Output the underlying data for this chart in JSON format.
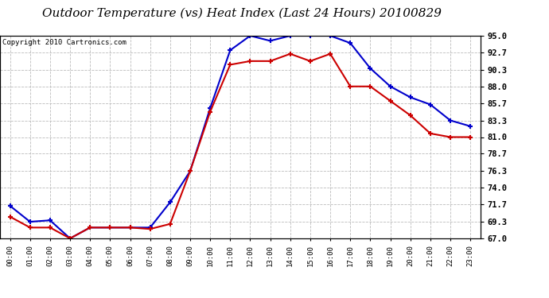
{
  "title": "Outdoor Temperature (vs) Heat Index (Last 24 Hours) 20100829",
  "copyright": "Copyright 2010 Cartronics.com",
  "x_labels": [
    "00:00",
    "01:00",
    "02:00",
    "03:00",
    "04:00",
    "05:00",
    "06:00",
    "07:00",
    "08:00",
    "09:00",
    "10:00",
    "11:00",
    "12:00",
    "13:00",
    "14:00",
    "15:00",
    "16:00",
    "17:00",
    "18:00",
    "19:00",
    "20:00",
    "21:00",
    "22:00",
    "23:00"
  ],
  "blue_data": [
    71.5,
    69.3,
    69.5,
    67.0,
    68.5,
    68.5,
    68.5,
    68.5,
    72.0,
    76.3,
    85.0,
    93.0,
    95.0,
    94.3,
    95.0,
    95.0,
    95.0,
    94.0,
    90.5,
    88.0,
    86.5,
    85.5,
    83.3,
    82.5
  ],
  "red_data": [
    70.0,
    68.5,
    68.5,
    67.0,
    68.5,
    68.5,
    68.5,
    68.3,
    69.0,
    76.3,
    84.5,
    91.0,
    91.5,
    91.5,
    92.5,
    91.5,
    92.5,
    88.0,
    88.0,
    86.0,
    84.0,
    81.5,
    81.0,
    81.0
  ],
  "y_ticks": [
    67.0,
    69.3,
    71.7,
    74.0,
    76.3,
    78.7,
    81.0,
    83.3,
    85.7,
    88.0,
    90.3,
    92.7,
    95.0
  ],
  "y_min": 67.0,
  "y_max": 95.0,
  "blue_color": "#0000CC",
  "red_color": "#CC0000",
  "grid_color": "#BBBBBB",
  "bg_color": "#FFFFFF",
  "title_fontsize": 11,
  "copyright_fontsize": 6.5
}
